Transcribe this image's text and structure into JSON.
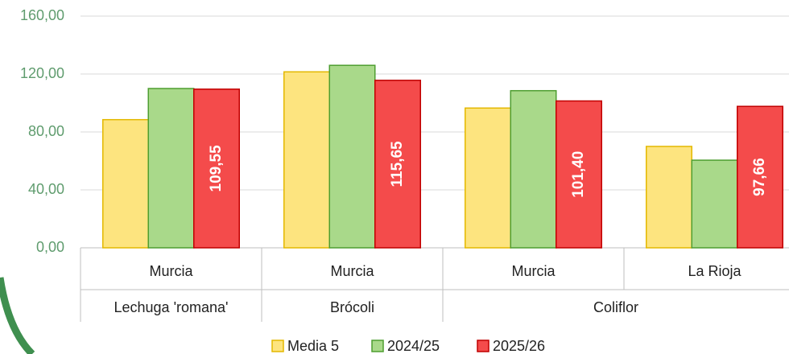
{
  "chart_data": {
    "type": "bar",
    "categories": [
      "Murcia",
      "Murcia",
      "Murcia",
      "La Rioja"
    ],
    "category_groups": [
      "Lechuga 'romana'",
      "Brócoli",
      "Coliflor",
      "Coliflor"
    ],
    "series": [
      {
        "name": "Media 5",
        "color": "#fde47f",
        "stroke": "#e3b800",
        "values": [
          88.5,
          121.5,
          96.5,
          70
        ]
      },
      {
        "name": "2024/25",
        "color": "#a9d98a",
        "stroke": "#4e9e30",
        "values": [
          110,
          126,
          108.5,
          60.5
        ]
      },
      {
        "name": "2025/26",
        "color": "#f44b4b",
        "stroke": "#c00000",
        "values": [
          109.55,
          115.65,
          101.4,
          97.66
        ],
        "value_labels": [
          "109,55",
          "115,65",
          "101,40",
          "97,66"
        ]
      }
    ],
    "ylim": [
      0,
      160
    ],
    "yticks": [
      {
        "value": 0,
        "label": "0,00"
      },
      {
        "value": 40,
        "label": "40,00"
      },
      {
        "value": 80,
        "label": "80,00"
      },
      {
        "value": 120,
        "label": "120,00"
      },
      {
        "value": 160,
        "label": "160,00"
      }
    ],
    "grid": true,
    "legend": "bottom"
  }
}
